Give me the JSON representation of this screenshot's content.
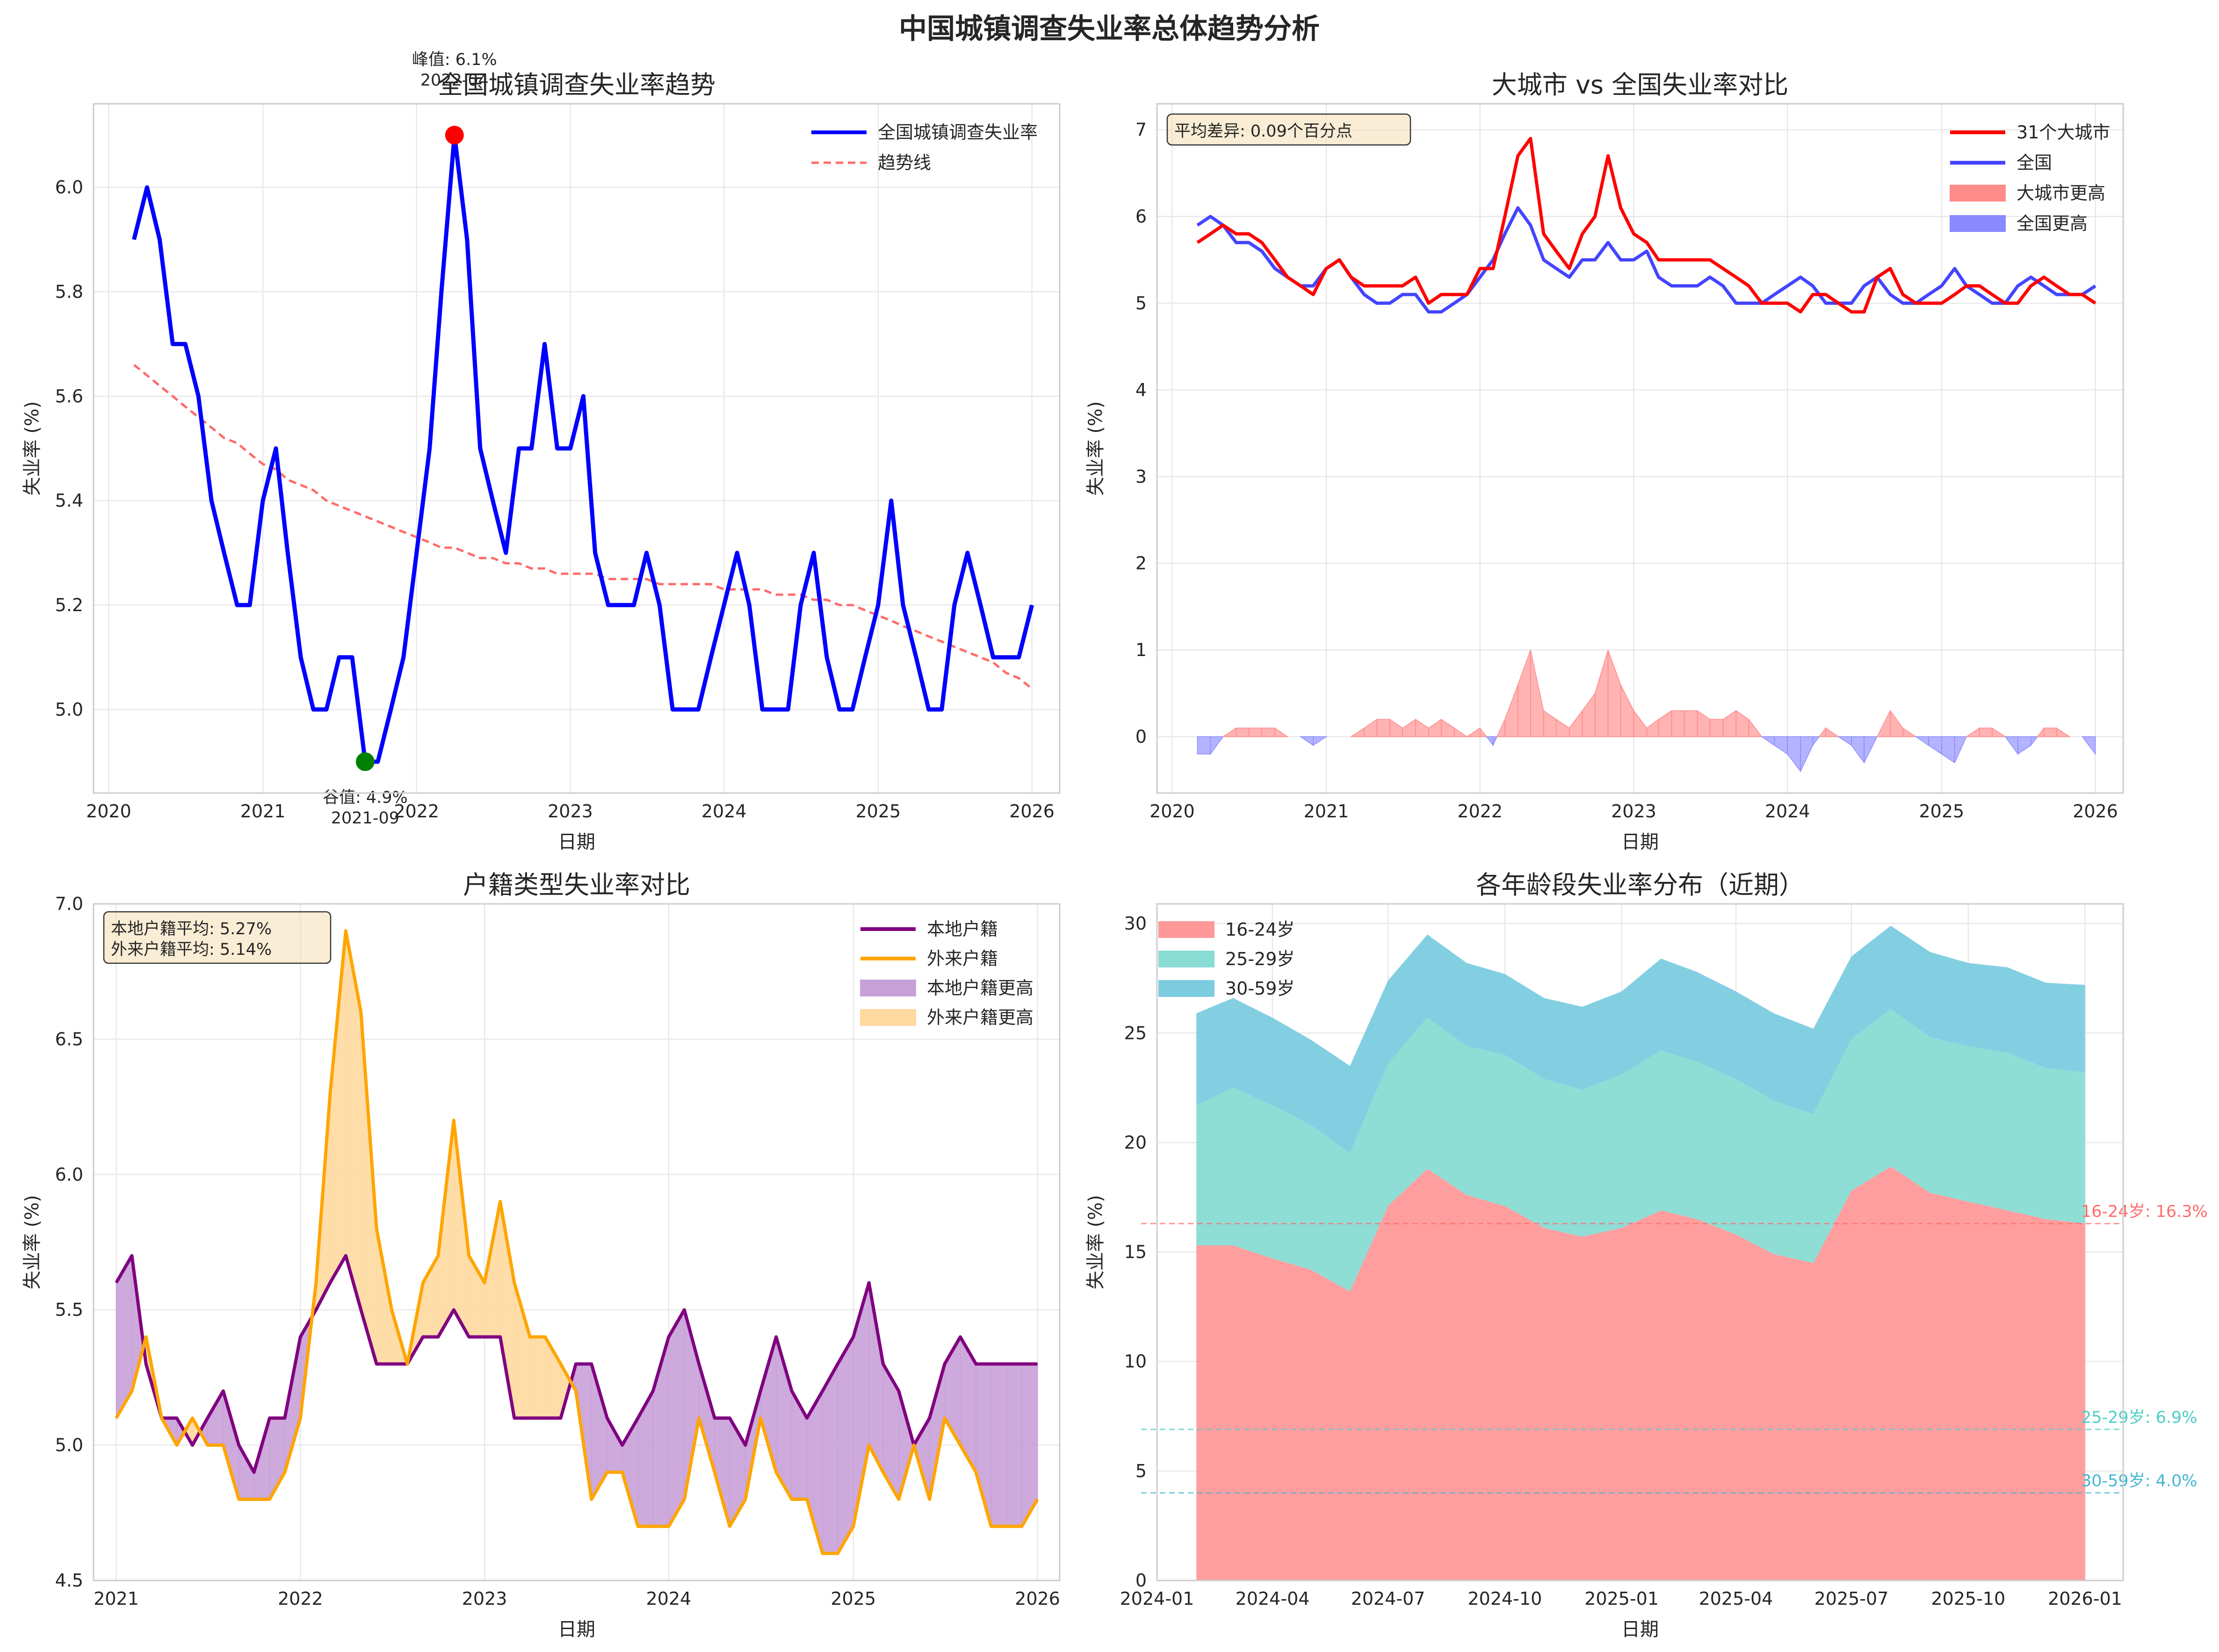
{
  "figure": {
    "suptitle": "中国城镇调查失业率总体趋势分析"
  },
  "chart_data": [
    {
      "type": "line",
      "title": "全国城镇调查失业率趋势",
      "xlabel": "日期",
      "ylabel": "失业率 (%)",
      "xlim": [
        "2019-11-26",
        "2026-03-08"
      ],
      "ylim": [
        4.84,
        6.16
      ],
      "xticks": [
        "2020",
        "2021",
        "2022",
        "2023",
        "2024",
        "2025",
        "2026"
      ],
      "yticks": [
        "5.0",
        "5.2",
        "5.4",
        "5.6",
        "5.8",
        "6.0"
      ],
      "grid": true,
      "legend_position": "top-right",
      "series": [
        {
          "name": "全国城镇调查失业率",
          "color": "#0000ff",
          "start": "2020-03",
          "values": [
            5.9,
            6.0,
            5.9,
            5.7,
            5.7,
            5.6,
            5.4,
            5.3,
            5.2,
            5.2,
            5.4,
            5.5,
            5.3,
            5.1,
            5.0,
            5.0,
            5.1,
            5.1,
            4.9,
            4.9,
            5.0,
            5.1,
            5.3,
            5.5,
            5.8,
            6.1,
            5.9,
            5.5,
            5.4,
            5.3,
            5.5,
            5.5,
            5.7,
            5.5,
            5.5,
            5.6,
            5.3,
            5.2,
            5.2,
            5.2,
            5.3,
            5.2,
            5.0,
            5.0,
            5.0,
            5.1,
            5.2,
            5.3,
            5.2,
            5.0,
            5.0,
            5.0,
            5.2,
            5.3,
            5.1,
            5.0,
            5.0,
            5.1,
            5.2,
            5.4,
            5.2,
            5.1,
            5.0,
            5.0,
            5.2,
            5.3,
            5.2,
            5.1,
            5.1,
            5.1,
            5.2
          ]
        },
        {
          "name": "趋势线",
          "color": "#ff6b6b",
          "dashed": true,
          "start": "2020-03",
          "values": [
            5.66,
            5.64,
            5.62,
            5.6,
            5.58,
            5.56,
            5.54,
            5.52,
            5.51,
            5.49,
            5.47,
            5.46,
            5.44,
            5.43,
            5.42,
            5.4,
            5.39,
            5.38,
            5.37,
            5.36,
            5.35,
            5.34,
            5.33,
            5.32,
            5.31,
            5.31,
            5.3,
            5.29,
            5.29,
            5.28,
            5.28,
            5.27,
            5.27,
            5.26,
            5.26,
            5.26,
            5.26,
            5.25,
            5.25,
            5.25,
            5.25,
            5.24,
            5.24,
            5.24,
            5.24,
            5.24,
            5.23,
            5.23,
            5.23,
            5.23,
            5.22,
            5.22,
            5.22,
            5.21,
            5.21,
            5.2,
            5.2,
            5.19,
            5.18,
            5.17,
            5.16,
            5.15,
            5.14,
            5.13,
            5.12,
            5.11,
            5.1,
            5.09,
            5.07,
            5.06,
            5.04
          ]
        }
      ],
      "annotations": [
        {
          "label": "峰值: 6.1%",
          "sub": "2022-04",
          "x": "2022-04",
          "y": 6.1,
          "color": "#ff0000"
        },
        {
          "label": "谷值: 4.9%",
          "sub": "2021-09",
          "x": "2021-09",
          "y": 4.9,
          "color": "#008000"
        }
      ]
    },
    {
      "type": "line",
      "title": "大城市 vs 全国失业率对比",
      "xlabel": "日期",
      "ylabel": "失业率 (%)",
      "xlim": [
        "2019-11-26",
        "2026-03-08"
      ],
      "ylim": [
        -0.65,
        7.3
      ],
      "xticks": [
        "2020",
        "2021",
        "2022",
        "2023",
        "2024",
        "2025",
        "2026"
      ],
      "yticks": [
        "0",
        "1",
        "2",
        "3",
        "4",
        "5",
        "6",
        "7"
      ],
      "grid": true,
      "legend_position": "top-right",
      "textbox": "平均差异: 0.09个百分点",
      "series": [
        {
          "name": "31个大城市",
          "color": "#ff0000",
          "start": "2020-03",
          "values": [
            5.7,
            5.8,
            5.9,
            5.8,
            5.8,
            5.7,
            5.5,
            5.3,
            5.2,
            5.1,
            5.4,
            5.5,
            5.3,
            5.2,
            5.2,
            5.2,
            5.2,
            5.3,
            5.0,
            5.1,
            5.1,
            5.1,
            5.4,
            5.4,
            6.0,
            6.7,
            6.9,
            5.8,
            5.6,
            5.4,
            5.8,
            6.0,
            6.7,
            6.1,
            5.8,
            5.7,
            5.5,
            5.5,
            5.5,
            5.5,
            5.5,
            5.4,
            5.3,
            5.2,
            5.0,
            5.0,
            5.0,
            4.9,
            5.1,
            5.1,
            5.0,
            4.9,
            4.9,
            5.3,
            5.4,
            5.1,
            5.0,
            5.0,
            5.0,
            5.1,
            5.2,
            5.2,
            5.1,
            5.0,
            5.0,
            5.2,
            5.3,
            5.2,
            5.1,
            5.1,
            5.0
          ]
        },
        {
          "name": "全国",
          "color": "#4444ff",
          "start": "2020-03",
          "values": [
            5.9,
            6.0,
            5.9,
            5.7,
            5.7,
            5.6,
            5.4,
            5.3,
            5.2,
            5.2,
            5.4,
            5.5,
            5.3,
            5.1,
            5.0,
            5.0,
            5.1,
            5.1,
            4.9,
            4.9,
            5.0,
            5.1,
            5.3,
            5.5,
            5.8,
            6.1,
            5.9,
            5.5,
            5.4,
            5.3,
            5.5,
            5.5,
            5.7,
            5.5,
            5.5,
            5.6,
            5.3,
            5.2,
            5.2,
            5.2,
            5.3,
            5.2,
            5.0,
            5.0,
            5.0,
            5.1,
            5.2,
            5.3,
            5.2,
            5.0,
            5.0,
            5.0,
            5.2,
            5.3,
            5.1,
            5.0,
            5.0,
            5.1,
            5.2,
            5.4,
            5.2,
            5.1,
            5.0,
            5.0,
            5.2,
            5.3,
            5.2,
            5.1,
            5.1,
            5.1,
            5.2
          ]
        }
      ],
      "fills": [
        {
          "name": "大城市更高",
          "color": "#ff8a8a"
        },
        {
          "name": "全国更高",
          "color": "#8a8aff"
        }
      ]
    },
    {
      "type": "line",
      "title": "户籍类型失业率对比",
      "xlabel": "日期",
      "ylabel": "失业率 (%)",
      "xlim": [
        "2020-11-17",
        "2026-02-14"
      ],
      "ylim": [
        4.5,
        7.0
      ],
      "xticks": [
        "2021",
        "2022",
        "2023",
        "2024",
        "2025",
        "2026"
      ],
      "yticks": [
        "4.5",
        "5.0",
        "5.5",
        "6.0",
        "6.5",
        "7.0"
      ],
      "grid": true,
      "legend_position": "top-right",
      "textbox": [
        "本地户籍平均: 5.27%",
        "外来户籍平均: 5.14%"
      ],
      "series": [
        {
          "name": "本地户籍",
          "color": "#800080",
          "start": "2021-01",
          "values": [
            5.6,
            5.7,
            5.3,
            5.1,
            5.1,
            5.0,
            5.1,
            5.2,
            5.0,
            4.9,
            5.1,
            5.1,
            5.4,
            5.5,
            5.6,
            5.7,
            5.5,
            5.3,
            5.3,
            5.3,
            5.4,
            5.4,
            5.5,
            5.4,
            5.4,
            5.4,
            5.1,
            5.1,
            5.1,
            5.1,
            5.3,
            5.3,
            5.1,
            5.0,
            5.1,
            5.2,
            5.4,
            5.5,
            5.3,
            5.1,
            5.1,
            5.0,
            5.2,
            5.4,
            5.2,
            5.1,
            5.2,
            5.3,
            5.4,
            5.6,
            5.3,
            5.2,
            5.0,
            5.1,
            5.3,
            5.4,
            5.3,
            5.3,
            5.3,
            5.3,
            5.3
          ]
        },
        {
          "name": "外来户籍",
          "color": "#ffa500",
          "start": "2021-01",
          "values": [
            5.1,
            5.2,
            5.4,
            5.1,
            5.0,
            5.1,
            5.0,
            5.0,
            4.8,
            4.8,
            4.8,
            4.9,
            5.1,
            5.6,
            6.3,
            6.9,
            6.6,
            5.8,
            5.5,
            5.3,
            5.6,
            5.7,
            6.2,
            5.7,
            5.6,
            5.9,
            5.6,
            5.4,
            5.4,
            5.3,
            5.2,
            4.8,
            4.9,
            4.9,
            4.7,
            4.7,
            4.7,
            4.8,
            5.1,
            4.9,
            4.7,
            4.8,
            5.1,
            4.9,
            4.8,
            4.8,
            4.6,
            4.6,
            4.7,
            5.0,
            4.9,
            4.8,
            5.0,
            4.8,
            5.1,
            5.0,
            4.9,
            4.7,
            4.7,
            4.7,
            4.8
          ]
        }
      ],
      "fills": [
        {
          "name": "本地户籍更高",
          "color": "#c8a0d8"
        },
        {
          "name": "外来户籍更高",
          "color": "#ffd9a0"
        }
      ]
    },
    {
      "type": "area",
      "title": "各年龄段失业率分布（近期）",
      "xlabel": "日期",
      "ylabel": "失业率 (%)",
      "xlim": [
        "2024-01-01",
        "2026-01-31"
      ],
      "ylim": [
        0,
        30.9
      ],
      "xticks": [
        "2024-01",
        "2024-04",
        "2024-07",
        "2024-10",
        "2025-01",
        "2025-04",
        "2025-07",
        "2025-10",
        "2026-01"
      ],
      "yticks": [
        "0",
        "5",
        "10",
        "15",
        "20",
        "25",
        "30"
      ],
      "grid": true,
      "legend_position": "top-left",
      "x": [
        "2024-02",
        "2024-03",
        "2024-04",
        "2024-05",
        "2024-06",
        "2024-07",
        "2024-08",
        "2024-09",
        "2024-10",
        "2024-11",
        "2024-12",
        "2025-01",
        "2025-02",
        "2025-03",
        "2025-04",
        "2025-05",
        "2025-06",
        "2025-07",
        "2025-08",
        "2025-09",
        "2025-10",
        "2025-11",
        "2025-12",
        "2026-01"
      ],
      "series": [
        {
          "name": "16-24岁",
          "color": "#ff9999",
          "values": [
            15.3,
            15.3,
            14.7,
            14.2,
            13.2,
            17.1,
            18.8,
            17.6,
            17.1,
            16.1,
            15.7,
            16.1,
            16.9,
            16.5,
            15.8,
            14.9,
            14.5,
            17.8,
            18.9,
            17.7,
            17.3,
            16.9,
            16.5,
            16.3
          ]
        },
        {
          "name": "25-29岁",
          "color": "#88dcd4",
          "values": [
            6.4,
            7.2,
            7.0,
            6.6,
            6.3,
            6.5,
            6.9,
            6.8,
            6.9,
            6.8,
            6.7,
            7.0,
            7.3,
            7.2,
            7.1,
            7.0,
            6.8,
            6.9,
            7.2,
            7.1,
            7.1,
            7.2,
            6.9,
            6.9
          ]
        },
        {
          "name": "30-59岁",
          "color": "#7ccce0",
          "values": [
            4.2,
            4.1,
            4.0,
            3.9,
            4.0,
            3.8,
            3.8,
            3.8,
            3.7,
            3.7,
            3.8,
            3.8,
            4.2,
            4.1,
            4.0,
            4.0,
            3.9,
            3.8,
            3.8,
            3.9,
            3.8,
            3.9,
            3.9,
            4.0
          ]
        }
      ],
      "reference_lines": [
        {
          "label": "16-24岁: 16.3%",
          "y": 16.3,
          "color": "#ff6b6b"
        },
        {
          "label": "25-29岁: 6.9%",
          "y": 6.9,
          "color": "#4ecdc4"
        },
        {
          "label": "30-59岁: 4.0%",
          "y": 4.0,
          "color": "#45b7d1"
        }
      ]
    }
  ]
}
